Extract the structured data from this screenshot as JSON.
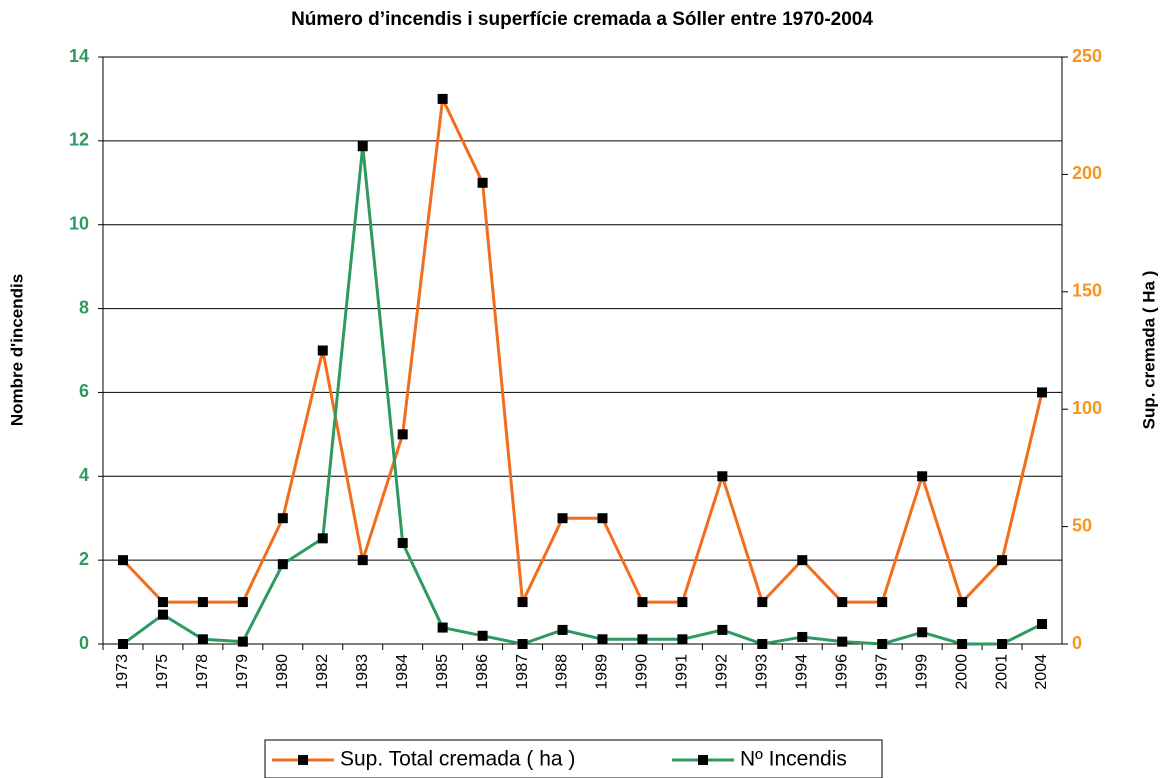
{
  "chart_data": {
    "type": "line",
    "title": "Número d’incendis i superfície cremada a Sóller entre 1970-2004",
    "ylabel": "Nombre d'incendis",
    "y2label": "Sup. cremada ( Ha )",
    "categories": [
      "1973",
      "1975",
      "1978",
      "1979",
      "1980",
      "1982",
      "1983",
      "1984",
      "1985",
      "1986",
      "1987",
      "1988",
      "1989",
      "1990",
      "1991",
      "1992",
      "1993",
      "1994",
      "1996",
      "1997",
      "1999",
      "2000",
      "2001",
      "2004"
    ],
    "series": [
      {
        "name": "Sup. Total cremada ( ha )",
        "color": "#f26d1d",
        "axis": "y",
        "values": [
          2,
          1,
          1,
          1,
          3,
          7,
          2,
          5,
          13,
          11,
          1,
          3,
          3,
          1,
          1,
          4,
          1,
          2,
          1,
          1,
          4,
          1,
          2,
          6
        ]
      },
      {
        "name": "Nº Incendis",
        "color": "#2e9a60",
        "axis": "y2",
        "values": [
          0,
          12.5,
          2,
          1,
          34,
          45,
          212,
          43,
          7,
          3.5,
          0,
          6,
          2,
          2,
          2,
          6,
          0,
          3,
          1,
          0,
          5,
          0,
          0,
          8.5
        ]
      }
    ],
    "ylim": [
      0,
      14
    ],
    "yticks": [
      0,
      2,
      4,
      6,
      8,
      10,
      12,
      14
    ],
    "ytick_color": "#2e9a60",
    "y2lim": [
      0,
      250
    ],
    "y2ticks": [
      0,
      50,
      100,
      150,
      200,
      250
    ],
    "y2tick_color": "#f7941d",
    "grid": true,
    "legend": "bottom"
  }
}
